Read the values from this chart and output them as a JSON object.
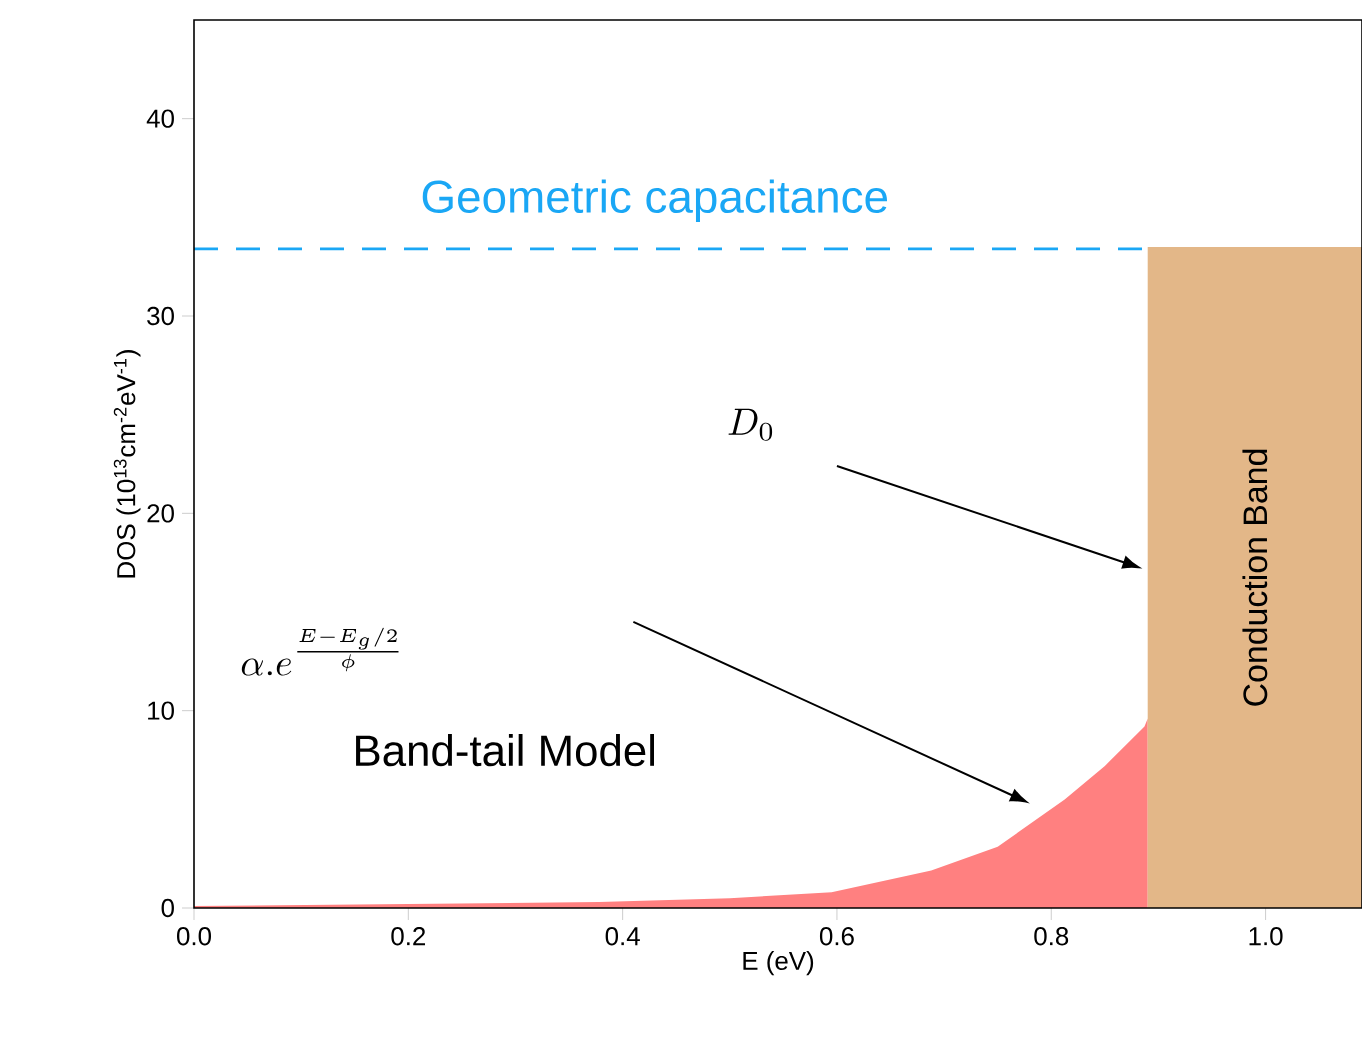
{
  "chart_data": {
    "type": "area",
    "xlabel": "E (eV)",
    "ylabel": "DOS (10$^{13}$cm$^{-2}$eV$^{-1}$)",
    "xlim": [
      0,
      1.09
    ],
    "ylim": [
      0,
      45
    ],
    "xticks": [
      {
        "value": 0,
        "label": "0.0"
      },
      {
        "value": 0.2,
        "label": "0.2"
      },
      {
        "value": 0.4,
        "label": "0.4"
      },
      {
        "value": 0.6,
        "label": "0.6"
      },
      {
        "value": 0.8,
        "label": "0.8"
      },
      {
        "value": 1,
        "label": "1.0"
      }
    ],
    "yticks": [
      0,
      10,
      20,
      30,
      40
    ],
    "series": [
      {
        "color": "#ff8080",
        "x": [
          0,
          0.2,
          0.378,
          0.5,
          0.595,
          0.688,
          0.75,
          0.8125,
          0.85,
          0.887,
          0.89
        ],
        "values": [
          0.1,
          0.2,
          0.3,
          0.5,
          0.8,
          1.9,
          3.1,
          5.5,
          7.2,
          9.2,
          9.6
        ]
      },
      {
        "name": "Conduction Band",
        "color": "#e3b788",
        "x": [
          0.89,
          1.09
        ],
        "values": [
          33.5,
          33.5
        ]
      }
    ],
    "ref_lines": [
      {
        "axis": "y",
        "value": 33.4,
        "label": "Geometric capacitance",
        "color": "#1aa7f5",
        "line_style": "dashed"
      }
    ],
    "annotations": [
      "D_0",
      "\\alpha.e^{\\frac{E-E_g/2}{\\phi}}",
      "Band-tail Model"
    ],
    "marker": "none"
  }
}
